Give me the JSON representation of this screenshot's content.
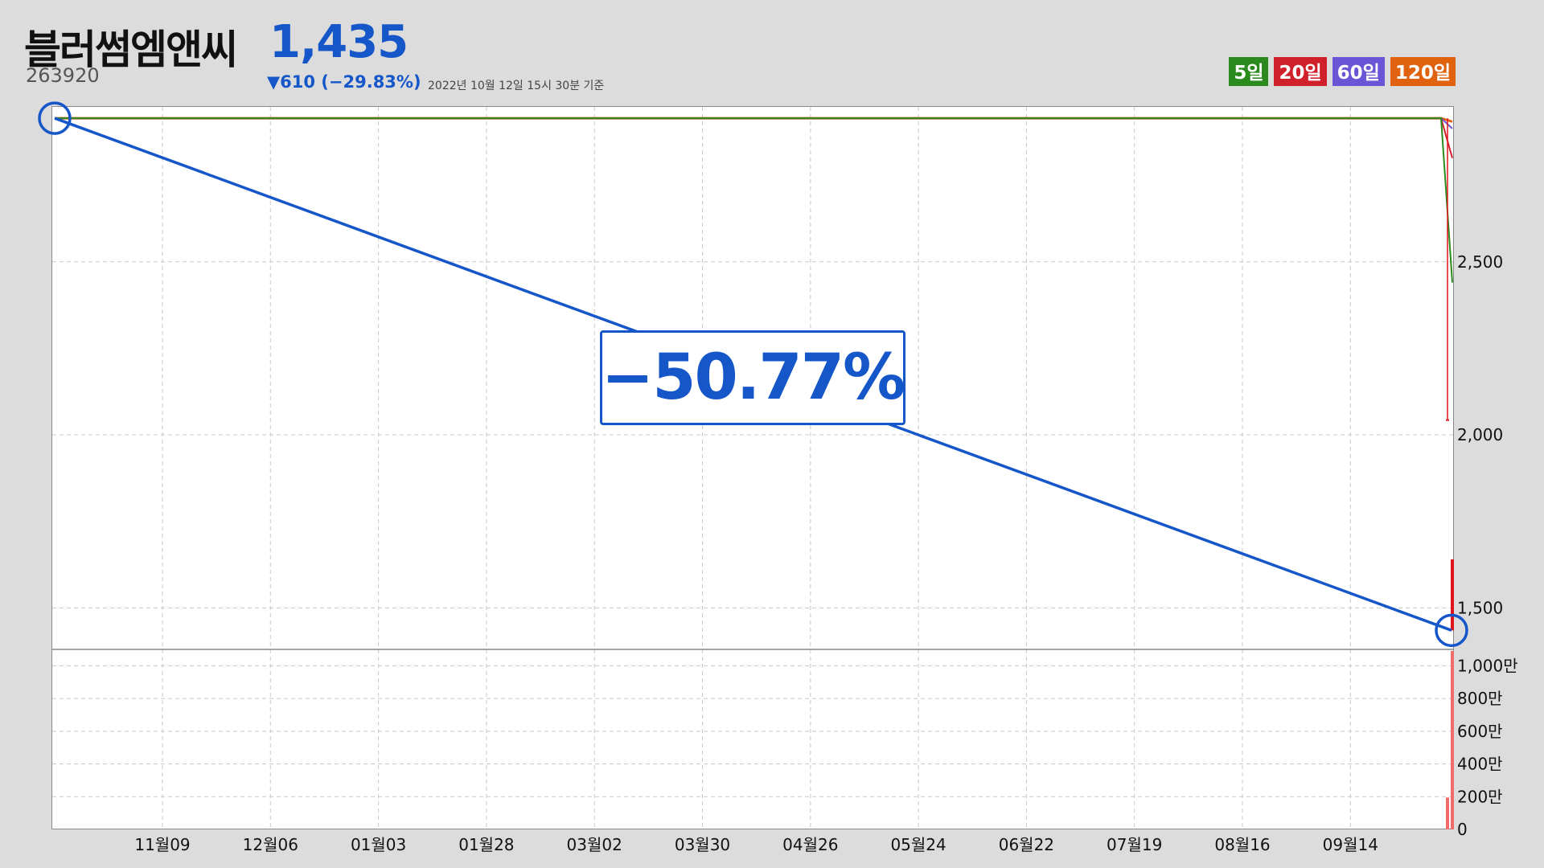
{
  "header": {
    "name": "블러썸엠앤씨",
    "price": "1,435",
    "code": "263920",
    "change": "▼610 (−29.83%)",
    "asof": "2022년 10월 12일 15시 30분 기준"
  },
  "legend": [
    {
      "label": "5일",
      "color": "#2a8a1e"
    },
    {
      "label": "20일",
      "color": "#d0202a"
    },
    {
      "label": "60일",
      "color": "#6a55d6"
    },
    {
      "label": "120일",
      "color": "#e0620e"
    }
  ],
  "annotation": {
    "label": "−50.77%",
    "color": "#1556c9"
  },
  "chart_data": {
    "type": "line",
    "x_ticks": [
      "11월09",
      "12월06",
      "01월03",
      "01월28",
      "03월02",
      "03월30",
      "04월26",
      "05월24",
      "06월22",
      "07월19",
      "08월16",
      "09월14"
    ],
    "price_axis": {
      "ticks": [
        "2,500",
        "2,000",
        "1,500"
      ],
      "tick_values": [
        2500,
        2000,
        1500
      ],
      "ylim": [
        1380,
        2950
      ]
    },
    "volume_axis": {
      "ticks": [
        "1,000만",
        "800만",
        "600만",
        "400만",
        "200만",
        "0"
      ],
      "tick_values": [
        1000,
        800,
        600,
        400,
        200,
        0
      ],
      "ylim": [
        0,
        1100
      ]
    },
    "grid": true,
    "series": [
      {
        "name": "5일",
        "color": "#2a8a1e"
      },
      {
        "name": "20일",
        "color": "#d0202a"
      },
      {
        "name": "60일",
        "color": "#6a55d6"
      },
      {
        "name": "120일",
        "color": "#e0620e"
      }
    ],
    "moving_average_flat_value": 2915,
    "moving_average_end_values": {
      "5일": 2440,
      "20일": 2800,
      "60일": 2885,
      "120일": 2905
    },
    "candles": [
      {
        "open": 2045,
        "close": 2045,
        "high": 2915,
        "low": 2045
      },
      {
        "open": 1640,
        "close": 1435,
        "high": 1640,
        "low": 1435
      }
    ],
    "volume_bars": [
      195,
      1090
    ],
    "trend_line": {
      "start_value": 2915,
      "end_value": 1435,
      "change": "−50.77%"
    }
  }
}
